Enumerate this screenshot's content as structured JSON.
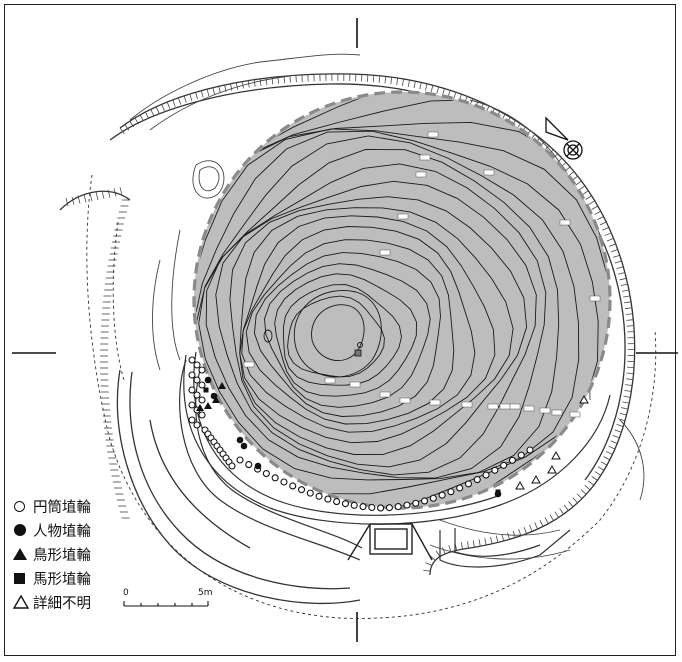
{
  "legend": {
    "items": [
      {
        "symbol": "open-circle",
        "label": "円筒埴輪"
      },
      {
        "symbol": "filled-circle",
        "label": "人物埴輪"
      },
      {
        "symbol": "filled-triangle",
        "label": "鳥形埴輪"
      },
      {
        "symbol": "filled-square",
        "label": "馬形埴輪"
      },
      {
        "symbol": "open-triangle",
        "label": "詳細不明"
      }
    ]
  },
  "scale_bar": {
    "start_label": "0",
    "end_label": "5m"
  },
  "colors": {
    "excavated_area": "#bdbdbd",
    "contour": "#1a1a1a",
    "boundary_dash": "#8a8a8a",
    "marker": "#111111"
  },
  "icons": [
    "north-arrow-icon",
    "crosshair-marks"
  ]
}
